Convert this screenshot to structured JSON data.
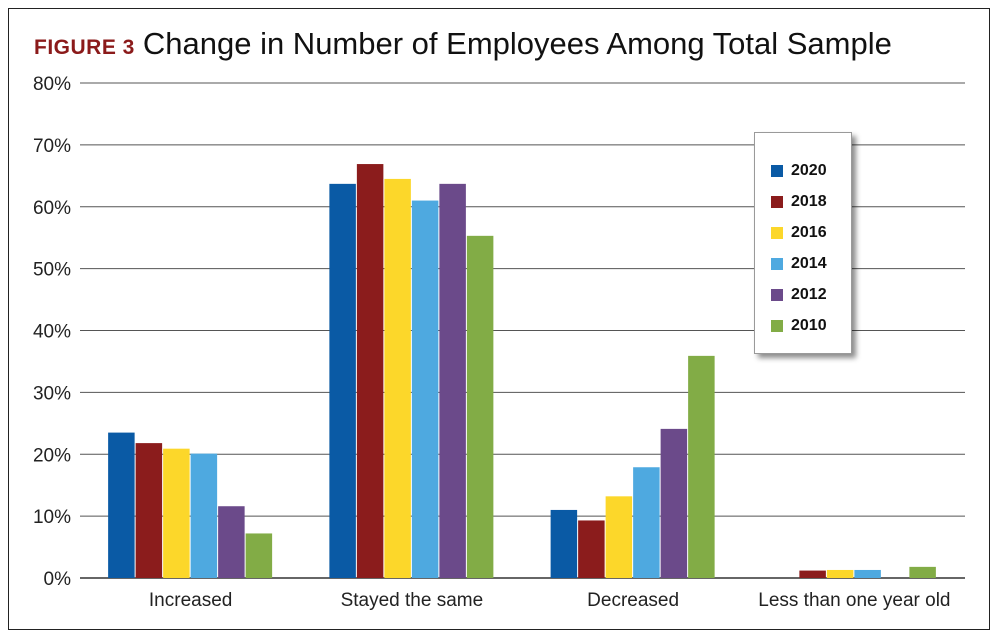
{
  "figure": {
    "label": "FIGURE 3",
    "title": "Change in Number of Employees Among Total Sample"
  },
  "chart_data": {
    "type": "bar",
    "title": "Change in Number of Employees Among Total Sample",
    "xlabel": "",
    "ylabel": "",
    "ylim": [
      0,
      80
    ],
    "yticks": [
      "0%",
      "10%",
      "20%",
      "30%",
      "40%",
      "50%",
      "60%",
      "70%",
      "80%"
    ],
    "grid": true,
    "legend_position": "right",
    "categories": [
      "Increased",
      "Stayed the same",
      "Decreased",
      "Less than one year old"
    ],
    "series": [
      {
        "name": "2020",
        "color": "#0a5aa5",
        "values": [
          23.5,
          63.7,
          11.0,
          0
        ]
      },
      {
        "name": "2018",
        "color": "#8b1c1c",
        "values": [
          21.8,
          66.9,
          9.3,
          1.2
        ]
      },
      {
        "name": "2016",
        "color": "#fcd72a",
        "values": [
          20.9,
          64.5,
          13.2,
          1.3
        ]
      },
      {
        "name": "2014",
        "color": "#4ea9e0",
        "values": [
          20.1,
          61.0,
          17.9,
          1.3
        ]
      },
      {
        "name": "2012",
        "color": "#6b4a8a",
        "values": [
          11.6,
          63.7,
          24.1,
          0
        ]
      },
      {
        "name": "2010",
        "color": "#82ac46",
        "values": [
          7.2,
          55.3,
          35.9,
          1.8
        ]
      }
    ]
  }
}
